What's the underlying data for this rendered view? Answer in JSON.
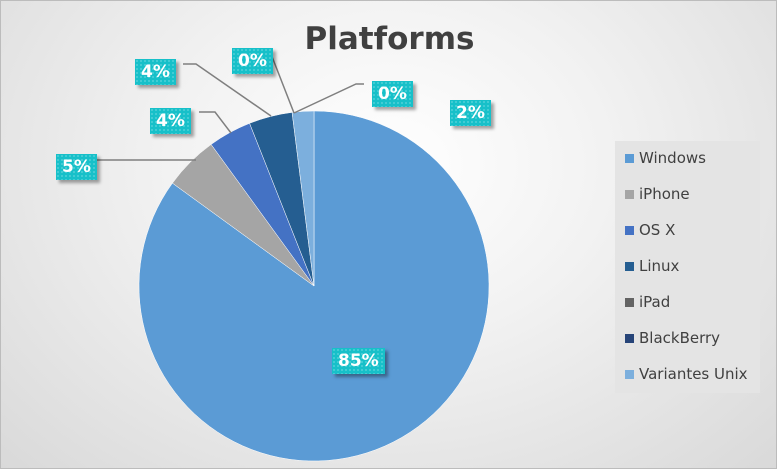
{
  "chart_data": {
    "type": "pie",
    "title": "Platforms",
    "categories": [
      "Windows",
      "iPhone",
      "OS X",
      "Linux",
      "iPad",
      "BlackBerry",
      "Variantes Unix"
    ],
    "values": [
      85,
      5,
      4,
      4,
      0,
      0,
      2
    ],
    "data_labels": [
      "85%",
      "5%",
      "4%",
      "4%",
      "0%",
      "0%",
      "2%"
    ],
    "colors": [
      "#5b9bd5",
      "#a5a5a5",
      "#4472c4",
      "#255e91",
      "#636363",
      "#264478",
      "#7cafdd"
    ],
    "label_color": "#17c0c9",
    "legend_position": "right",
    "start_angle_deg": 0,
    "direction": "clockwise"
  }
}
